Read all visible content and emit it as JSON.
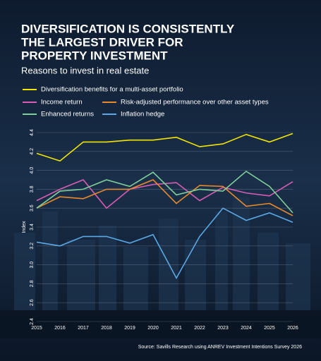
{
  "chart_data": {
    "type": "line",
    "title_lines": [
      "DIVERSIFICATION IS CONSISTENTLY",
      "THE LARGEST DRIVER FOR",
      "PROPERTY INVESTMENT"
    ],
    "subtitle": "Reasons to invest in real estate",
    "y_label": "Index",
    "source": "Source: Savills Research using ANREV Investment Intentions Survey 2026",
    "categories": [
      "2015",
      "2016",
      "2017",
      "2018",
      "2019",
      "2020",
      "2021",
      "2022",
      "2023",
      "2024",
      "2025",
      "2026"
    ],
    "series": [
      {
        "name": "Diversification benefits for a multi-asset portfolio",
        "color": "#f2e500",
        "values": [
          4.18,
          4.1,
          4.3,
          4.3,
          4.32,
          4.32,
          4.35,
          4.25,
          4.28,
          4.38,
          4.3,
          4.39
        ]
      },
      {
        "name": "Income return",
        "color": "#d65db1",
        "values": [
          3.68,
          3.8,
          3.9,
          3.6,
          3.8,
          3.85,
          3.87,
          3.68,
          3.82,
          3.76,
          3.73,
          3.88
        ]
      },
      {
        "name": "Risk-adjusted performance over other asset types",
        "color": "#e8892b",
        "values": [
          3.6,
          3.72,
          3.7,
          3.8,
          3.8,
          3.9,
          3.65,
          3.84,
          3.83,
          3.62,
          3.65,
          3.52
        ]
      },
      {
        "name": "Enhanced returns",
        "color": "#7fcf9a",
        "values": [
          3.6,
          3.78,
          3.8,
          3.9,
          3.83,
          3.98,
          3.74,
          3.8,
          3.78,
          3.99,
          3.83,
          3.55
        ]
      },
      {
        "name": "Inflation hedge",
        "color": "#5aa9e6",
        "values": [
          3.24,
          3.2,
          3.3,
          3.3,
          3.23,
          3.32,
          2.86,
          3.3,
          3.6,
          3.47,
          3.55,
          3.45
        ]
      }
    ],
    "ylim": [
      2.4,
      4.4
    ],
    "yticks": [
      2.4,
      2.6,
      2.8,
      {
        "value": 3,
        "label": "3.0"
      },
      3.2,
      3.4,
      3.6,
      3.8,
      {
        "value": 4,
        "label": "4.0"
      },
      4.2,
      4.4
    ],
    "grid": true
  }
}
